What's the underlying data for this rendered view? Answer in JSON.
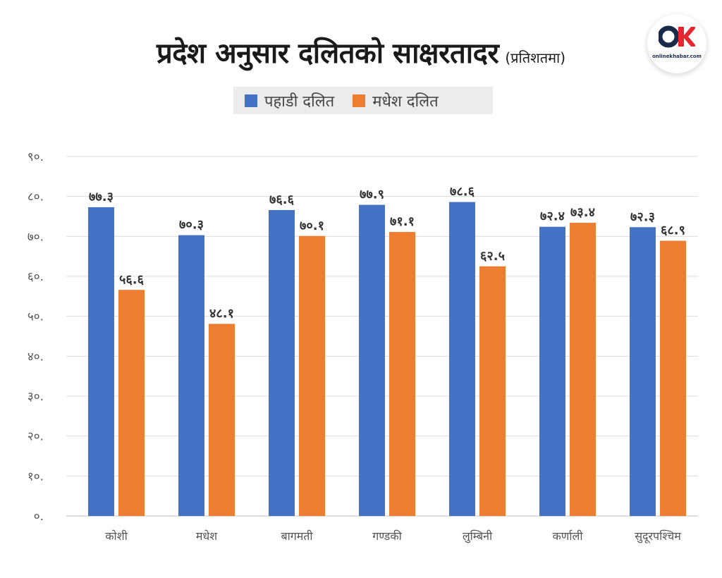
{
  "title": "प्रदेश अनुसार दलितको साक्षरतादर",
  "subtitle": "(प्रतिशतमा)",
  "logo": {
    "text": "onlinekhabar.com",
    "brand_color": "#e8262f"
  },
  "colors": {
    "hill": "#4472c4",
    "madhesh": "#ed7d31",
    "grid": "#dddddd",
    "axis_text": "#555555",
    "label_text": "#333333"
  },
  "chart_data": {
    "type": "bar",
    "title": "प्रदेश अनुसार दलितको साक्षरतादर",
    "subtitle": "(प्रतिशतमा)",
    "categories": [
      "कोशी",
      "मधेश",
      "बागमती",
      "गण्डकी",
      "लुम्बिनी",
      "कर्णाली",
      "सुदूरपश्चिम"
    ],
    "series": [
      {
        "name": "पहाडी दलित",
        "color": "#4472c4",
        "values": [
          77.3,
          70.3,
          76.6,
          77.9,
          78.6,
          72.4,
          72.3
        ],
        "labels": [
          "७७.३",
          "७०.३",
          "७६.६",
          "७७.९",
          "७८.६",
          "७२.४",
          "७२.३"
        ]
      },
      {
        "name": "मधेश दलित",
        "color": "#ed7d31",
        "values": [
          56.6,
          48.1,
          70.1,
          71.1,
          62.5,
          73.4,
          68.9
        ],
        "labels": [
          "५६.६",
          "४८.१",
          "७०.१",
          "७१.१",
          "६२.५",
          "७३.४",
          "६८.९"
        ]
      }
    ],
    "ylim": [
      0,
      90
    ],
    "yticks": [
      0,
      10,
      20,
      30,
      40,
      50,
      60,
      70,
      80,
      90
    ],
    "ytick_labels": [
      "०.",
      "१०.",
      "२०.",
      "३०.",
      "४०.",
      "५०.",
      "६०.",
      "७०.",
      "८०.",
      "९०."
    ],
    "grid": true,
    "legend_position": "top-center"
  }
}
